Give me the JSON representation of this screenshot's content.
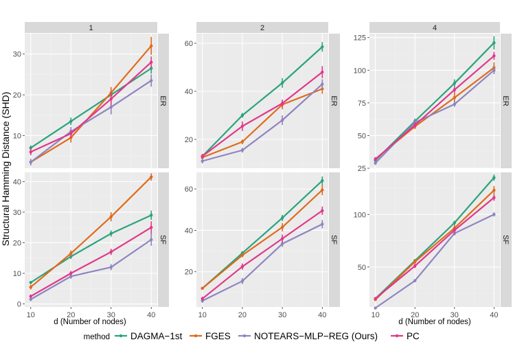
{
  "figure": {
    "ylabel": "Structural Hamming Distance (SHD)",
    "xlabel": "d (Number of nodes)",
    "legend_title": "method"
  },
  "colors": {
    "panel_bg": "#EBEBEB",
    "strip_bg": "#D9D9D9",
    "grid_major": "#FFFFFF",
    "grid_minor": "#F2F2F2"
  },
  "chart_data": {
    "type": "line",
    "x": [
      10,
      20,
      30,
      40
    ],
    "col_facets": [
      "1",
      "2",
      "4"
    ],
    "row_facets": [
      "ER",
      "SF"
    ],
    "legend_position": "bottom",
    "grid": true,
    "series": [
      {
        "name": "DAGMA−1st",
        "color": "#2BA37C"
      },
      {
        "name": "FGES",
        "color": "#E06A1B"
      },
      {
        "name": "NOTEARS−MLP−REG (Ours)",
        "color": "#8E84C0"
      },
      {
        "name": "PC",
        "color": "#E0388A"
      }
    ],
    "panels": [
      {
        "col": "1",
        "row": "ER",
        "ylim": [
          2,
          35
        ],
        "yticks": [
          10,
          20,
          30
        ],
        "values": [
          [
            7,
            13.5,
            20,
            26.5
          ],
          [
            3.5,
            9.5,
            20.5,
            32
          ],
          [
            3.5,
            11,
            17,
            23.5
          ],
          [
            6,
            10.5,
            19,
            28
          ]
        ],
        "err": [
          [
            0.6,
            0.9,
            1.2,
            1.3
          ],
          [
            0.8,
            1.2,
            1.4,
            2.2
          ],
          [
            0.8,
            1.1,
            1.8,
            1.5
          ],
          [
            0.8,
            1.0,
            1.6,
            1.4
          ]
        ]
      },
      {
        "col": "2",
        "row": "ER",
        "ylim": [
          8,
          64
        ],
        "yticks": [
          20,
          40,
          60
        ],
        "values": [
          [
            13,
            30,
            43.5,
            58.5
          ],
          [
            12.5,
            19,
            34.5,
            41
          ],
          [
            11,
            15.5,
            28,
            43
          ],
          [
            13,
            25.5,
            35,
            48
          ]
        ],
        "err": [
          [
            0.8,
            1.0,
            2.0,
            2.0
          ],
          [
            0.6,
            1.0,
            2.0,
            2.0
          ],
          [
            1.0,
            1.0,
            2.0,
            2.0
          ],
          [
            1.0,
            2.0,
            1.5,
            2.5
          ]
        ]
      },
      {
        "col": "4",
        "row": "ER",
        "ylim": [
          25,
          128
        ],
        "yticks": [
          25,
          50,
          75,
          100,
          125
        ],
        "values": [
          [
            31,
            61,
            90,
            121
          ],
          [
            32,
            57,
            79,
            102
          ],
          [
            29,
            60,
            74,
            100
          ],
          [
            32,
            58,
            85,
            111
          ]
        ],
        "err": [
          [
            1.5,
            2.0,
            3.0,
            5.0
          ],
          [
            1.5,
            2.0,
            4.0,
            4.0
          ],
          [
            1.5,
            2.0,
            2.0,
            3.0
          ],
          [
            1.5,
            2.0,
            2.0,
            3.0
          ]
        ]
      },
      {
        "col": "1",
        "row": "SF",
        "ylim": [
          -1,
          43
        ],
        "yticks": [
          0,
          10,
          20,
          30,
          40
        ],
        "values": [
          [
            7,
            15.5,
            23,
            29
          ],
          [
            5.5,
            16.5,
            28.5,
            41.5
          ],
          [
            1.5,
            9,
            12,
            21
          ],
          [
            2.5,
            10,
            17,
            25
          ]
        ],
        "err": [
          [
            0.5,
            0.8,
            1.0,
            1.5
          ],
          [
            0.8,
            1.0,
            1.5,
            1.2
          ],
          [
            0.6,
            0.8,
            1.0,
            2.0
          ],
          [
            0.6,
            0.8,
            1.0,
            2.0
          ]
        ]
      },
      {
        "col": "2",
        "row": "SF",
        "ylim": [
          3,
          68
        ],
        "yticks": [
          20,
          40,
          60
        ],
        "values": [
          [
            12,
            29,
            46,
            64
          ],
          [
            12,
            28,
            41.5,
            59.5
          ],
          [
            6,
            15.5,
            33.5,
            43
          ],
          [
            7,
            22.5,
            36,
            49.5
          ]
        ],
        "err": [
          [
            0.6,
            1.0,
            1.5,
            2.0
          ],
          [
            0.6,
            1.0,
            2.0,
            2.5
          ],
          [
            1.0,
            1.5,
            1.5,
            2.0
          ],
          [
            1.0,
            1.5,
            2.0,
            2.0
          ]
        ]
      },
      {
        "col": "4",
        "row": "SF",
        "ylim": [
          12,
          140
        ],
        "yticks": [
          50,
          100
        ],
        "values": [
          [
            20,
            56,
            92,
            135
          ],
          [
            19,
            55,
            87,
            123
          ],
          [
            11,
            37,
            82,
            100
          ],
          [
            20,
            51,
            85,
            116
          ]
        ],
        "err": [
          [
            1.0,
            1.5,
            2.0,
            3.0
          ],
          [
            1.0,
            2.0,
            3.0,
            4.0
          ],
          [
            1.0,
            1.5,
            2.0,
            2.0
          ],
          [
            1.0,
            2.0,
            3.0,
            3.0
          ]
        ]
      }
    ]
  }
}
